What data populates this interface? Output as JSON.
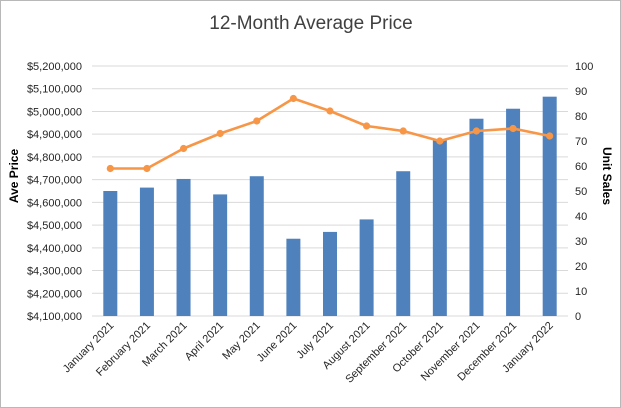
{
  "chart_data": {
    "type": "bar",
    "title": "12-Month Average Price",
    "categories": [
      "January 2021",
      "February 2021",
      "March 2021",
      "April 2021",
      "May 2021",
      "June 2021",
      "July 2021",
      "August 2021",
      "September 2021",
      "October 2021",
      "November 2021",
      "December 2021",
      "January 2022"
    ],
    "series": [
      {
        "name": "",
        "type": "bar",
        "axis": "left",
        "color": "#4f81bd",
        "values": [
          4650000,
          4665000,
          4703000,
          4635000,
          4715000,
          4440000,
          4470000,
          4525000,
          4737000,
          4878000,
          4968000,
          5012000,
          5065000
        ]
      },
      {
        "name": "",
        "type": "line",
        "axis": "right",
        "color": "#f79646",
        "values": [
          59,
          59,
          67,
          73,
          78,
          87,
          82,
          76,
          74,
          70,
          74,
          75,
          72
        ]
      }
    ],
    "ylabel": "Ave Price",
    "ylabel_right": "Unit Sales",
    "ylim": [
      4100000,
      5200000
    ],
    "ylim_right": [
      0,
      100
    ],
    "yticks": [
      "$4,100,000",
      "$4,200,000",
      "$4,300,000",
      "$4,400,000",
      "$4,500,000",
      "$4,600,000",
      "$4,700,000",
      "$4,800,000",
      "$4,900,000",
      "$5,000,000",
      "$5,100,000",
      "$5,200,000"
    ],
    "yticks_right": [
      "0",
      "10",
      "20",
      "30",
      "40",
      "50",
      "60",
      "70",
      "80",
      "90",
      "100"
    ],
    "grid": true,
    "legend": "none"
  }
}
